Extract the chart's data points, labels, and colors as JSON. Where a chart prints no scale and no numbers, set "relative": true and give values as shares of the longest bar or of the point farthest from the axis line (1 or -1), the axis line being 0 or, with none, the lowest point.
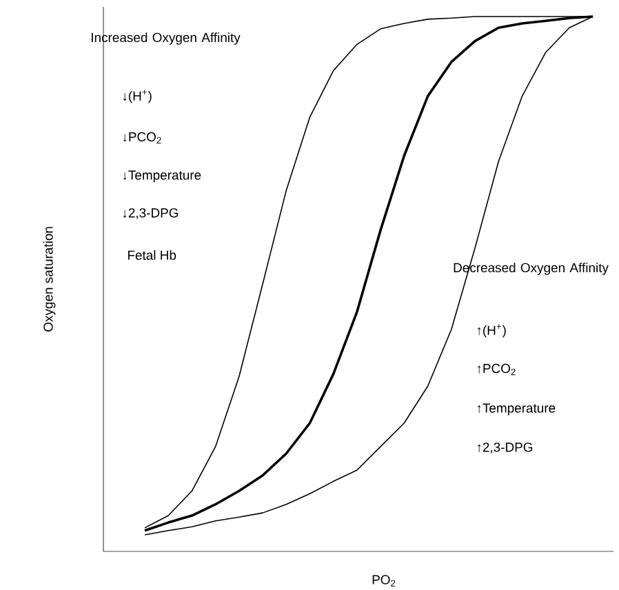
{
  "chart_data": {
    "type": "line",
    "relative": true,
    "xlabel": "PO$_{2}$",
    "ylabel": "Oxygen saturation",
    "line_style": "solid",
    "marker": "none",
    "tick_labels": false,
    "categories": [
      null,
      null,
      null,
      null,
      null,
      null,
      null,
      null,
      null,
      null,
      null,
      null,
      null,
      null,
      null,
      null,
      null,
      null,
      null,
      null
    ],
    "series": [
      {
        "color": "#000000",
        "values": [
          0.044,
          0.067,
          0.113,
          0.196,
          0.327,
          0.5,
          0.675,
          0.812,
          0.899,
          0.948,
          0.977,
          0.987,
          0.995,
          0.997,
          1,
          1,
          1,
          1,
          1,
          1
        ]
      },
      {
        "color": "#000000",
        "values": [
          0.039,
          0.054,
          0.067,
          0.088,
          0.113,
          0.142,
          0.183,
          0.24,
          0.332,
          0.448,
          0.601,
          0.74,
          0.851,
          0.915,
          0.954,
          0.979,
          0.987,
          0.992,
          0.997,
          1
        ]
      },
      {
        "color": "#000000",
        "values": [
          0.031,
          0.039,
          0.046,
          0.057,
          0.064,
          0.072,
          0.088,
          0.108,
          0.131,
          0.152,
          0.196,
          0.24,
          0.309,
          0.415,
          0.567,
          0.729,
          0.851,
          0.933,
          0.979,
          1
        ]
      }
    ],
    "annotations": [
      "Increased Oxygen Affinity",
      "↓(H$^{+}$)",
      "↓PCO$_{2}$",
      "↓Temperature",
      "↓2,3-DPG",
      "Fetal Hb",
      "Decreased Oxygen Affinity",
      "↑(H$^{+}$)",
      "↑PCO$_{2}$",
      "↑Temperature",
      "↑2,3-DPG"
    ]
  }
}
